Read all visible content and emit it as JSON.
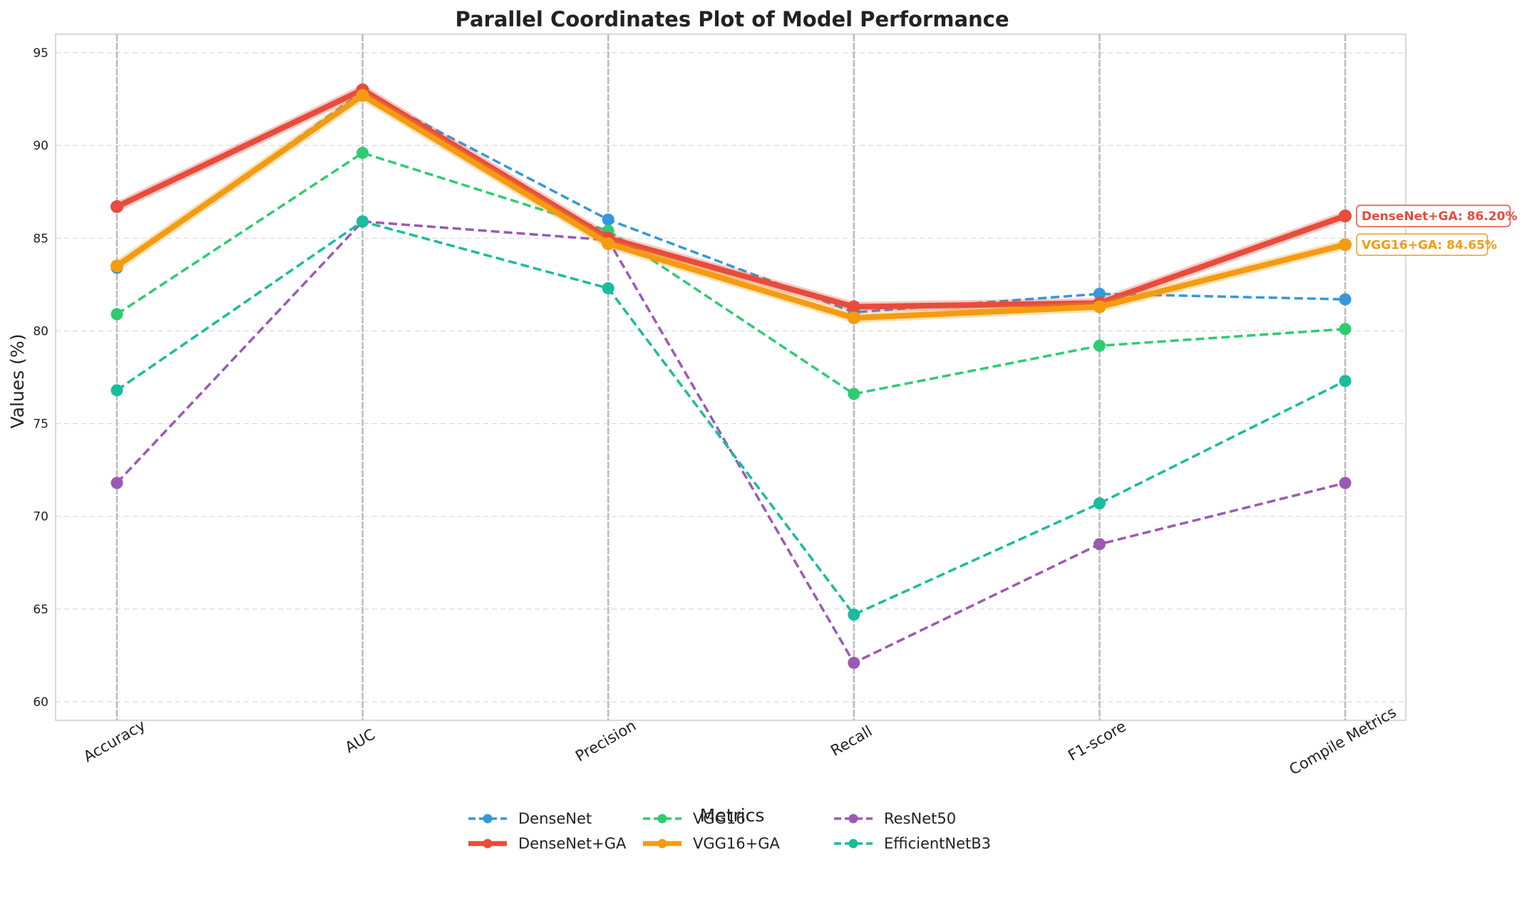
{
  "chart_data": {
    "type": "line",
    "title": "Parallel Coordinates Plot of Model Performance",
    "xlabel": "Metrics",
    "ylabel": "Values (%)",
    "categories": [
      "Accuracy",
      "AUC",
      "Precision",
      "Recall",
      "F1-score",
      "Compile Metrics"
    ],
    "ylim": [
      59,
      96
    ],
    "yticks": [
      60,
      65,
      70,
      75,
      80,
      85,
      90,
      95
    ],
    "grid": true,
    "legend_position": "bottom-center",
    "series": [
      {
        "name": "DenseNet",
        "color": "#3498db",
        "style": "dashed",
        "values": [
          83.4,
          92.9,
          86.0,
          81.0,
          82.0,
          81.7
        ]
      },
      {
        "name": "DenseNet+GA",
        "color": "#e74c3c",
        "style": "solid",
        "values": [
          86.7,
          93.0,
          85.0,
          81.3,
          81.5,
          86.2
        ]
      },
      {
        "name": "VGG16",
        "color": "#2ecc71",
        "style": "dashed",
        "values": [
          80.9,
          89.6,
          85.4,
          76.6,
          79.2,
          80.1
        ]
      },
      {
        "name": "VGG16+GA",
        "color": "#f39c12",
        "style": "solid",
        "values": [
          83.5,
          92.7,
          84.7,
          80.7,
          81.3,
          84.65
        ]
      },
      {
        "name": "ResNet50",
        "color": "#9b59b6",
        "style": "dashed",
        "values": [
          71.8,
          85.9,
          84.9,
          62.1,
          68.5,
          71.8
        ]
      },
      {
        "name": "EfficientNetB3",
        "color": "#1abc9c",
        "style": "dashed",
        "values": [
          76.8,
          85.9,
          82.3,
          64.7,
          70.7,
          77.3
        ]
      }
    ],
    "annotations": [
      {
        "text": "DenseNet+GA: 86.20%",
        "series": "DenseNet+GA",
        "color": "#e74c3c"
      },
      {
        "text": "VGG16+GA: 84.65%",
        "series": "VGG16+GA",
        "color": "#f39c12"
      }
    ],
    "legend_order": [
      "DenseNet",
      "DenseNet+GA",
      "VGG16",
      "VGG16+GA",
      "ResNet50",
      "EfficientNetB3"
    ]
  }
}
